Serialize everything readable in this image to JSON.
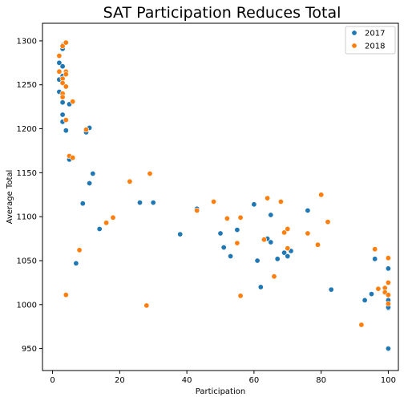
{
  "chart_data": {
    "type": "scatter",
    "title": "SAT Participation Reduces Total",
    "xlabel": "Participation",
    "ylabel": "Average Total",
    "xlim": [
      -3,
      103
    ],
    "ylim": [
      925,
      1320
    ],
    "xticks": [
      0,
      20,
      40,
      60,
      80,
      100
    ],
    "yticks": [
      950,
      1000,
      1050,
      1100,
      1150,
      1200,
      1250,
      1300
    ],
    "grid": false,
    "legend_position": "top-right",
    "series": [
      {
        "name": "2017",
        "color": "#1f77b4",
        "points": [
          [
            2,
            1275
          ],
          [
            2,
            1256
          ],
          [
            2,
            1242
          ],
          [
            3,
            1295
          ],
          [
            3,
            1291
          ],
          [
            3,
            1271
          ],
          [
            3,
            1260
          ],
          [
            3,
            1239
          ],
          [
            3,
            1230
          ],
          [
            3,
            1216
          ],
          [
            3,
            1208
          ],
          [
            4,
            1262
          ],
          [
            4,
            1198
          ],
          [
            5,
            1228
          ],
          [
            5,
            1165
          ],
          [
            7,
            1047
          ],
          [
            9,
            1115
          ],
          [
            10,
            1196
          ],
          [
            11,
            1138
          ],
          [
            11,
            1201
          ],
          [
            12,
            1149
          ],
          [
            14,
            1086
          ],
          [
            26,
            1116
          ],
          [
            30,
            1116
          ],
          [
            38,
            1080
          ],
          [
            43,
            1109
          ],
          [
            50,
            1081
          ],
          [
            51,
            1065
          ],
          [
            53,
            1055
          ],
          [
            55,
            1085
          ],
          [
            60,
            1114
          ],
          [
            61,
            1050
          ],
          [
            62,
            1020
          ],
          [
            64,
            1075
          ],
          [
            65,
            1071
          ],
          [
            65,
            1102
          ],
          [
            67,
            1052
          ],
          [
            69,
            1059
          ],
          [
            70,
            1055
          ],
          [
            71,
            1061
          ],
          [
            76,
            1107
          ],
          [
            83,
            1017
          ],
          [
            93,
            1005
          ],
          [
            95,
            1012
          ],
          [
            96,
            1052
          ],
          [
            100,
            1041
          ],
          [
            100,
            1005
          ],
          [
            100,
            1000
          ],
          [
            100,
            996
          ],
          [
            100,
            997
          ],
          [
            100,
            950
          ]
        ]
      },
      {
        "name": "2018",
        "color": "#ff7f0e",
        "points": [
          [
            2,
            1283
          ],
          [
            2,
            1265
          ],
          [
            3,
            1294
          ],
          [
            3,
            1257
          ],
          [
            3,
            1252
          ],
          [
            3,
            1240
          ],
          [
            3,
            1236
          ],
          [
            4,
            1298
          ],
          [
            4,
            1265
          ],
          [
            4,
            1262
          ],
          [
            4,
            1248
          ],
          [
            4,
            1011
          ],
          [
            4,
            1210
          ],
          [
            5,
            1169
          ],
          [
            6,
            1231
          ],
          [
            6,
            1167
          ],
          [
            8,
            1062
          ],
          [
            10,
            1199
          ],
          [
            16,
            1093
          ],
          [
            18,
            1099
          ],
          [
            23,
            1140
          ],
          [
            28,
            999
          ],
          [
            29,
            1149
          ],
          [
            43,
            1107
          ],
          [
            48,
            1117
          ],
          [
            52,
            1098
          ],
          [
            55,
            1070
          ],
          [
            56,
            1010
          ],
          [
            56,
            1099
          ],
          [
            63,
            1074
          ],
          [
            64,
            1121
          ],
          [
            66,
            1032
          ],
          [
            68,
            1117
          ],
          [
            69,
            1082
          ],
          [
            70,
            1086
          ],
          [
            70,
            1064
          ],
          [
            76,
            1081
          ],
          [
            79,
            1068
          ],
          [
            80,
            1125
          ],
          [
            82,
            1094
          ],
          [
            92,
            977
          ],
          [
            96,
            1063
          ],
          [
            97,
            1018
          ],
          [
            99,
            1019
          ],
          [
            99,
            1014
          ],
          [
            100,
            1053
          ],
          [
            100,
            1025
          ],
          [
            100,
            1011
          ],
          [
            100,
            1001
          ]
        ]
      }
    ]
  }
}
